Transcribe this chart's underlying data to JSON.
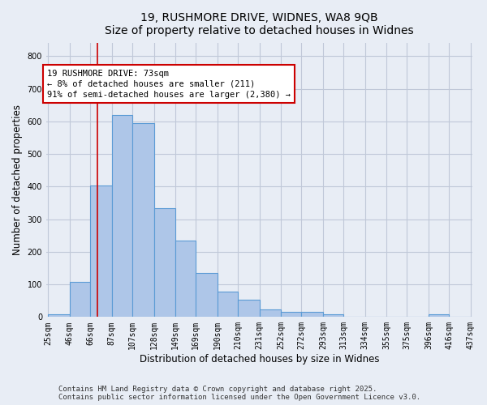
{
  "title_line1": "19, RUSHMORE DRIVE, WIDNES, WA8 9QB",
  "title_line2": "Size of property relative to detached houses in Widnes",
  "xlabel": "Distribution of detached houses by size in Widnes",
  "ylabel": "Number of detached properties",
  "bin_edges": [
    25,
    46,
    66,
    87,
    107,
    128,
    149,
    169,
    190,
    210,
    231,
    252,
    272,
    293,
    313,
    334,
    355,
    375,
    396,
    416,
    437
  ],
  "bar_heights": [
    8,
    108,
    403,
    620,
    595,
    335,
    235,
    136,
    78,
    52,
    22,
    15,
    15,
    9,
    0,
    0,
    0,
    0,
    9,
    0
  ],
  "bar_color": "#aec6e8",
  "bar_edge_color": "#5b9bd5",
  "property_size": 73,
  "red_line_color": "#cc0000",
  "annotation_text": "19 RUSHMORE DRIVE: 73sqm\n← 8% of detached houses are smaller (211)\n91% of semi-detached houses are larger (2,380) →",
  "annotation_box_color": "#ffffff",
  "annotation_box_edge_color": "#cc0000",
  "ylim": [
    0,
    840
  ],
  "yticks": [
    0,
    100,
    200,
    300,
    400,
    500,
    600,
    700,
    800
  ],
  "grid_color": "#c0c8d8",
  "background_color": "#e8edf5",
  "footer_line1": "Contains HM Land Registry data © Crown copyright and database right 2025.",
  "footer_line2": "Contains public sector information licensed under the Open Government Licence v3.0.",
  "title_fontsize": 10,
  "axis_label_fontsize": 8.5,
  "tick_fontsize": 7,
  "annotation_fontsize": 7.5,
  "footer_fontsize": 6.5
}
